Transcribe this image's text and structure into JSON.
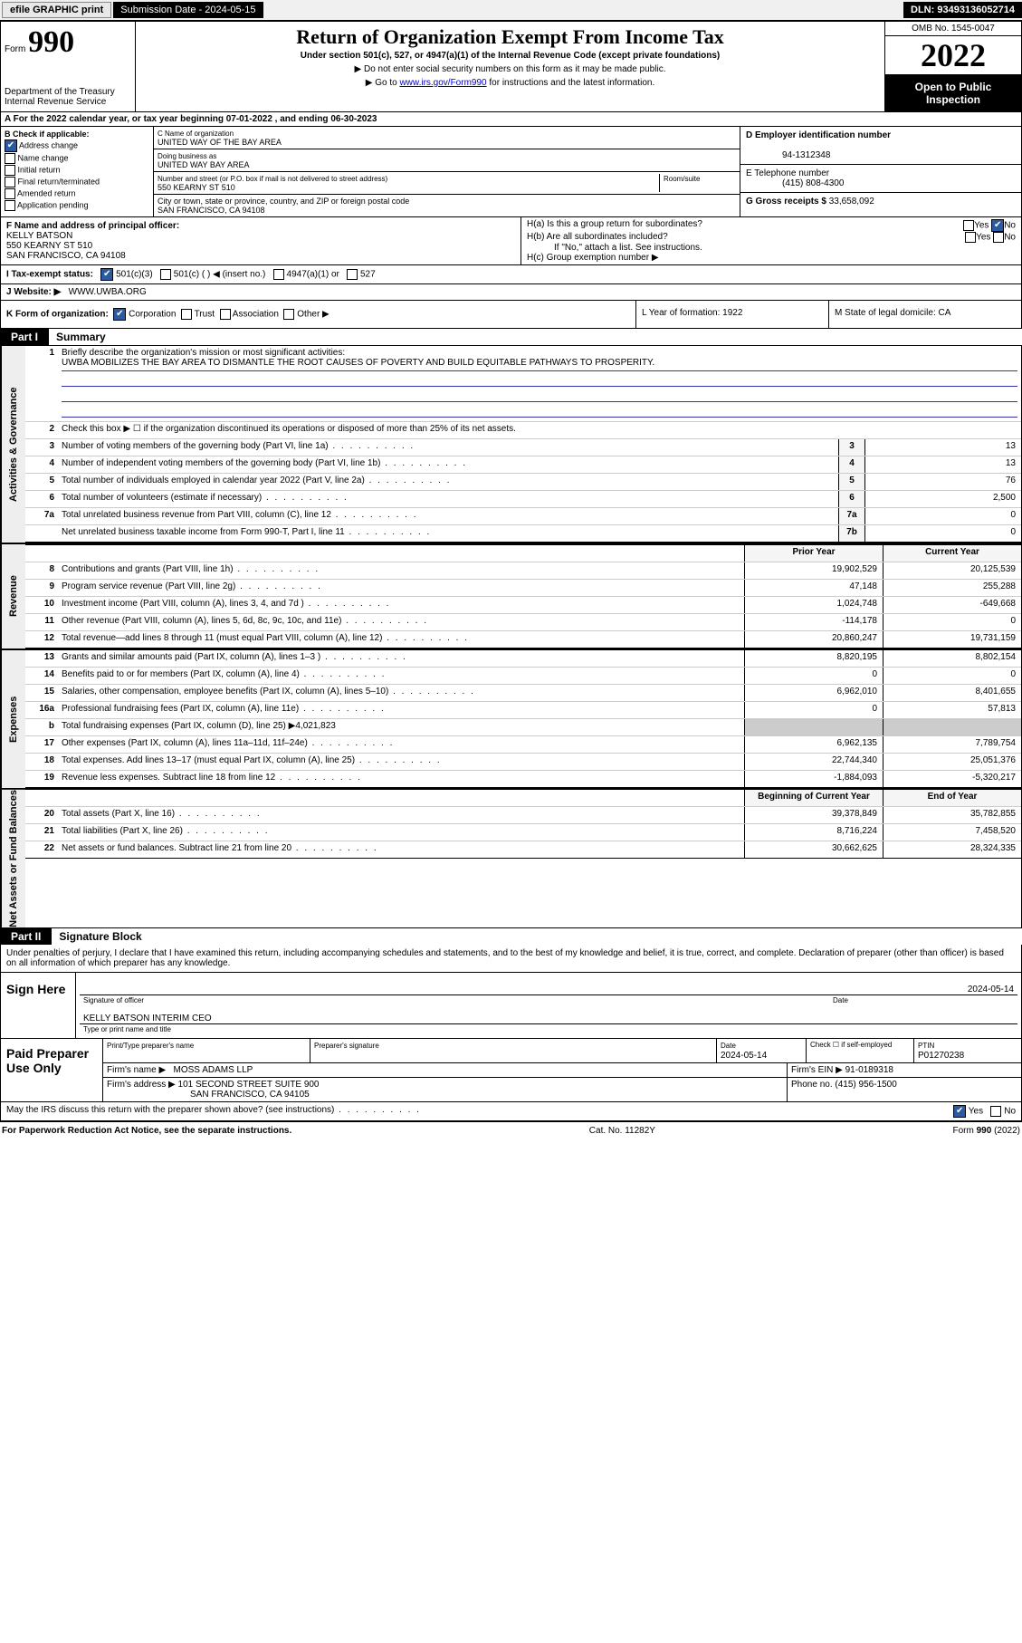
{
  "topbar": {
    "efile": "efile GRAPHIC print",
    "submission_label": "Submission Date - 2024-05-15",
    "dln": "DLN: 93493136052714"
  },
  "header": {
    "form_prefix": "Form",
    "form_number": "990",
    "department": "Department of the Treasury\nInternal Revenue Service",
    "title": "Return of Organization Exempt From Income Tax",
    "sub1": "Under section 501(c), 527, or 4947(a)(1) of the Internal Revenue Code (except private foundations)",
    "sub2": "▶ Do not enter social security numbers on this form as it may be made public.",
    "sub3_pre": "▶ Go to ",
    "sub3_link": "www.irs.gov/Form990",
    "sub3_post": " for instructions and the latest information.",
    "omb": "OMB No. 1545-0047",
    "year": "2022",
    "open_public": "Open to Public Inspection"
  },
  "row_a": "A For the 2022 calendar year, or tax year beginning 07-01-2022   , and ending 06-30-2023",
  "section_b": {
    "title": "B Check if applicable:",
    "items": [
      "Address change",
      "Name change",
      "Initial return",
      "Final return/terminated",
      "Amended return",
      "Application pending"
    ],
    "checked_idx": 0
  },
  "section_c": {
    "name_label": "C Name of organization",
    "name": "UNITED WAY OF THE BAY AREA",
    "dba_label": "Doing business as",
    "dba": "UNITED WAY BAY AREA",
    "street_label": "Number and street (or P.O. box if mail is not delivered to street address)",
    "room_label": "Room/suite",
    "street": "550 KEARNY ST 510",
    "city_label": "City or town, state or province, country, and ZIP or foreign postal code",
    "city": "SAN FRANCISCO, CA  94108"
  },
  "section_d": {
    "label": "D Employer identification number",
    "value": "94-1312348"
  },
  "section_e": {
    "label": "E Telephone number",
    "value": "(415) 808-4300"
  },
  "section_g": {
    "label": "G Gross receipts $",
    "value": "33,658,092"
  },
  "section_f": {
    "label": "F Name and address of principal officer:",
    "name": "KELLY BATSON",
    "street": "550 KEARNY ST 510",
    "city": "SAN FRANCISCO, CA  94108"
  },
  "section_h": {
    "ha": "H(a)  Is this a group return for subordinates?",
    "hb": "H(b)  Are all subordinates included?",
    "hb_note": "If \"No,\" attach a list. See instructions.",
    "hc": "H(c)  Group exemption number ▶"
  },
  "row_i": {
    "label": "I   Tax-exempt status:",
    "opts": [
      "501(c)(3)",
      "501(c) (  ) ◀ (insert no.)",
      "4947(a)(1) or",
      "527"
    ]
  },
  "row_j": {
    "label": "J   Website: ▶",
    "value": "WWW.UWBA.ORG"
  },
  "row_k": {
    "label": "K Form of organization:",
    "opts": [
      "Corporation",
      "Trust",
      "Association",
      "Other ▶"
    ],
    "l": {
      "label": "L Year of formation:",
      "value": "1922"
    },
    "m": {
      "label": "M State of legal domicile:",
      "value": "CA"
    }
  },
  "part1": {
    "header_num": "Part I",
    "header_title": "Summary",
    "governance_label": "Activities & Governance",
    "revenue_label": "Revenue",
    "expenses_label": "Expenses",
    "netassets_label": "Net Assets or Fund Balances",
    "line1_label": "Briefly describe the organization's mission or most significant activities:",
    "line1_text": "UWBA MOBILIZES THE BAY AREA TO DISMANTLE THE ROOT CAUSES OF POVERTY AND BUILD EQUITABLE PATHWAYS TO PROSPERITY.",
    "line2": "Check this box ▶ ☐  if the organization discontinued its operations or disposed of more than 25% of its net assets.",
    "gov_rows": [
      {
        "n": "3",
        "d": "Number of voting members of the governing body (Part VI, line 1a)",
        "box": "3",
        "v": "13"
      },
      {
        "n": "4",
        "d": "Number of independent voting members of the governing body (Part VI, line 1b)",
        "box": "4",
        "v": "13"
      },
      {
        "n": "5",
        "d": "Total number of individuals employed in calendar year 2022 (Part V, line 2a)",
        "box": "5",
        "v": "76"
      },
      {
        "n": "6",
        "d": "Total number of volunteers (estimate if necessary)",
        "box": "6",
        "v": "2,500"
      },
      {
        "n": "7a",
        "d": "Total unrelated business revenue from Part VIII, column (C), line 12",
        "box": "7a",
        "v": "0"
      },
      {
        "n": "",
        "d": "Net unrelated business taxable income from Form 990-T, Part I, line 11",
        "box": "7b",
        "v": "0"
      }
    ],
    "col_hdr_prior": "Prior Year",
    "col_hdr_current": "Current Year",
    "rev_rows": [
      {
        "n": "8",
        "d": "Contributions and grants (Part VIII, line 1h)",
        "p": "19,902,529",
        "c": "20,125,539"
      },
      {
        "n": "9",
        "d": "Program service revenue (Part VIII, line 2g)",
        "p": "47,148",
        "c": "255,288"
      },
      {
        "n": "10",
        "d": "Investment income (Part VIII, column (A), lines 3, 4, and 7d )",
        "p": "1,024,748",
        "c": "-649,668"
      },
      {
        "n": "11",
        "d": "Other revenue (Part VIII, column (A), lines 5, 6d, 8c, 9c, 10c, and 11e)",
        "p": "-114,178",
        "c": "0"
      },
      {
        "n": "12",
        "d": "Total revenue—add lines 8 through 11 (must equal Part VIII, column (A), line 12)",
        "p": "20,860,247",
        "c": "19,731,159"
      }
    ],
    "exp_rows": [
      {
        "n": "13",
        "d": "Grants and similar amounts paid (Part IX, column (A), lines 1–3 )",
        "p": "8,820,195",
        "c": "8,802,154"
      },
      {
        "n": "14",
        "d": "Benefits paid to or for members (Part IX, column (A), line 4)",
        "p": "0",
        "c": "0"
      },
      {
        "n": "15",
        "d": "Salaries, other compensation, employee benefits (Part IX, column (A), lines 5–10)",
        "p": "6,962,010",
        "c": "8,401,655"
      },
      {
        "n": "16a",
        "d": "Professional fundraising fees (Part IX, column (A), line 11e)",
        "p": "0",
        "c": "57,813"
      },
      {
        "n": "b",
        "d": "Total fundraising expenses (Part IX, column (D), line 25) ▶4,021,823",
        "p": "",
        "c": ""
      },
      {
        "n": "17",
        "d": "Other expenses (Part IX, column (A), lines 11a–11d, 11f–24e)",
        "p": "6,962,135",
        "c": "7,789,754"
      },
      {
        "n": "18",
        "d": "Total expenses. Add lines 13–17 (must equal Part IX, column (A), line 25)",
        "p": "22,744,340",
        "c": "25,051,376"
      },
      {
        "n": "19",
        "d": "Revenue less expenses. Subtract line 18 from line 12",
        "p": "-1,884,093",
        "c": "-5,320,217"
      }
    ],
    "net_hdr_begin": "Beginning of Current Year",
    "net_hdr_end": "End of Year",
    "net_rows": [
      {
        "n": "20",
        "d": "Total assets (Part X, line 16)",
        "p": "39,378,849",
        "c": "35,782,855"
      },
      {
        "n": "21",
        "d": "Total liabilities (Part X, line 26)",
        "p": "8,716,224",
        "c": "7,458,520"
      },
      {
        "n": "22",
        "d": "Net assets or fund balances. Subtract line 21 from line 20",
        "p": "30,662,625",
        "c": "28,324,335"
      }
    ]
  },
  "part2": {
    "header_num": "Part II",
    "header_title": "Signature Block",
    "declaration": "Under penalties of perjury, I declare that I have examined this return, including accompanying schedules and statements, and to the best of my knowledge and belief, it is true, correct, and complete. Declaration of preparer (other than officer) is based on all information of which preparer has any knowledge.",
    "sign_here": "Sign Here",
    "sig_date": "2024-05-14",
    "sig_officer_caption": "Signature of officer",
    "sig_date_caption": "Date",
    "officer_name": "KELLY BATSON  INTERIM CEO",
    "officer_caption": "Type or print name and title",
    "paid_preparer": "Paid Preparer Use Only",
    "prep_name_lbl": "Print/Type preparer's name",
    "prep_sig_lbl": "Preparer's signature",
    "prep_date_lbl": "Date",
    "prep_date": "2024-05-14",
    "prep_check_lbl": "Check ☐ if self-employed",
    "ptin_lbl": "PTIN",
    "ptin": "P01270238",
    "firm_name_lbl": "Firm's name    ▶",
    "firm_name": "MOSS ADAMS LLP",
    "firm_ein_lbl": "Firm's EIN ▶",
    "firm_ein": "91-0189318",
    "firm_addr_lbl": "Firm's address ▶",
    "firm_addr1": "101 SECOND STREET SUITE 900",
    "firm_addr2": "SAN FRANCISCO, CA  94105",
    "firm_phone_lbl": "Phone no.",
    "firm_phone": "(415) 956-1500",
    "discuss": "May the IRS discuss this return with the preparer shown above? (see instructions)"
  },
  "footer": {
    "left": "For Paperwork Reduction Act Notice, see the separate instructions.",
    "mid": "Cat. No. 11282Y",
    "right": "Form 990 (2022)"
  },
  "colors": {
    "link": "#0000c8",
    "rule": "#3333aa",
    "check_fill": "#2c5aa0"
  }
}
